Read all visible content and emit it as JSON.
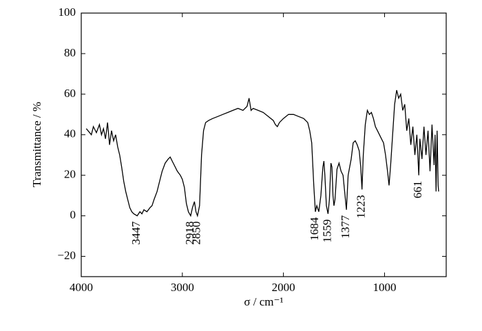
{
  "chart_data": {
    "type": "line",
    "color": "#000000",
    "xlabel": "σ / cm⁻¹",
    "ylabel": "Transmittance / %",
    "xlim": [
      4000,
      390
    ],
    "ylim": [
      -30,
      100
    ],
    "xticks": [
      4000,
      3000,
      2000,
      1000
    ],
    "yticks": [
      {
        "value": -20,
        "label": "−20"
      },
      0,
      20,
      40,
      60,
      80,
      100
    ],
    "annotations": [
      3447,
      2918,
      2850,
      1684,
      1559,
      1377,
      1223,
      661
    ],
    "x": [
      3950,
      3900,
      3880,
      3850,
      3820,
      3800,
      3780,
      3760,
      3740,
      3720,
      3700,
      3680,
      3660,
      3640,
      3620,
      3600,
      3580,
      3560,
      3540,
      3520,
      3500,
      3480,
      3447,
      3420,
      3400,
      3380,
      3350,
      3320,
      3300,
      3280,
      3250,
      3220,
      3200,
      3170,
      3140,
      3120,
      3100,
      3080,
      3050,
      3020,
      3000,
      2980,
      2960,
      2940,
      2918,
      2900,
      2880,
      2865,
      2850,
      2830,
      2810,
      2790,
      2770,
      2740,
      2700,
      2650,
      2600,
      2550,
      2500,
      2450,
      2400,
      2360,
      2340,
      2320,
      2300,
      2250,
      2200,
      2150,
      2100,
      2080,
      2060,
      2040,
      2000,
      1950,
      1900,
      1850,
      1800,
      1760,
      1740,
      1720,
      1700,
      1684,
      1670,
      1650,
      1630,
      1610,
      1600,
      1590,
      1575,
      1559,
      1545,
      1530,
      1520,
      1510,
      1500,
      1490,
      1470,
      1450,
      1430,
      1410,
      1395,
      1377,
      1360,
      1345,
      1330,
      1310,
      1290,
      1270,
      1250,
      1235,
      1223,
      1210,
      1190,
      1170,
      1150,
      1130,
      1110,
      1090,
      1070,
      1050,
      1030,
      1010,
      990,
      970,
      955,
      940,
      920,
      900,
      880,
      860,
      840,
      820,
      800,
      780,
      760,
      740,
      720,
      700,
      680,
      661,
      650,
      630,
      610,
      590,
      570,
      550,
      530,
      510,
      500,
      490,
      480,
      470,
      465
    ],
    "values": [
      43,
      40,
      44,
      41,
      45,
      40,
      43,
      38,
      46,
      35,
      42,
      37,
      40,
      34,
      30,
      24,
      17,
      12,
      8,
      4,
      2,
      1,
      0,
      2,
      1,
      3,
      2,
      4,
      5,
      8,
      12,
      18,
      22,
      26,
      28,
      29,
      27,
      25,
      22,
      20,
      18,
      14,
      6,
      2,
      0,
      4,
      7,
      2,
      0,
      5,
      30,
      42,
      46,
      47,
      48,
      49,
      50,
      51,
      52,
      53,
      52,
      54,
      58,
      52,
      53,
      52,
      51,
      49,
      47,
      45,
      44,
      46,
      48,
      50,
      50,
      49,
      48,
      46,
      42,
      36,
      15,
      2,
      5,
      2,
      10,
      24,
      27,
      20,
      5,
      1,
      8,
      26,
      24,
      10,
      5,
      8,
      23,
      26,
      22,
      20,
      12,
      3,
      20,
      24,
      28,
      36,
      37,
      35,
      32,
      24,
      13,
      30,
      45,
      52,
      50,
      51,
      48,
      44,
      42,
      40,
      38,
      36,
      30,
      22,
      15,
      25,
      40,
      55,
      62,
      58,
      60,
      52,
      55,
      42,
      48,
      35,
      44,
      30,
      40,
      20,
      38,
      28,
      44,
      30,
      42,
      22,
      45,
      25,
      40,
      12,
      42,
      15,
      12
    ]
  }
}
